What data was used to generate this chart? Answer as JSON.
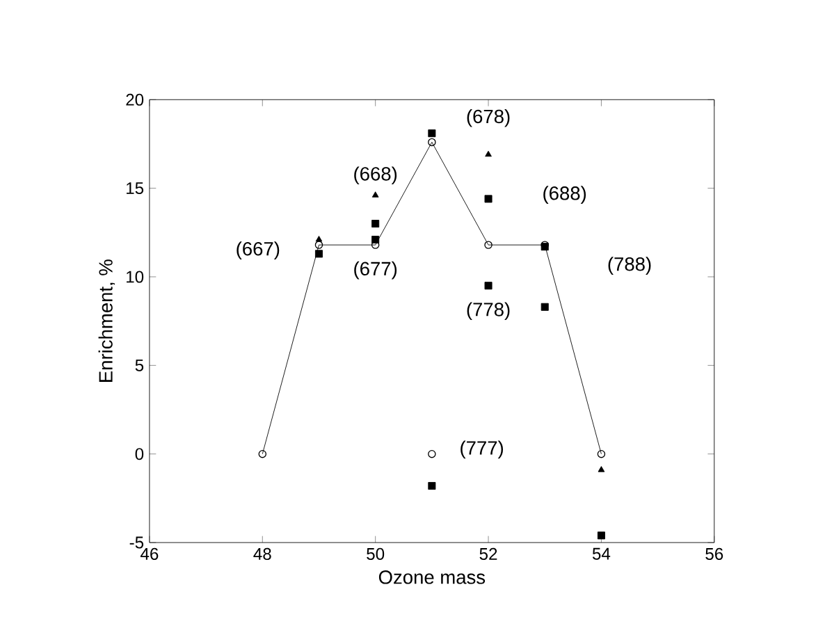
{
  "chart_data": {
    "type": "scatter",
    "xlabel": "Ozone mass",
    "ylabel": "Enrichment, %",
    "xlim": [
      46,
      56
    ],
    "ylim": [
      -5,
      20
    ],
    "xticks": [
      46,
      48,
      50,
      52,
      54,
      56
    ],
    "yticks": [
      -5,
      0,
      5,
      10,
      15,
      20
    ],
    "grid": false,
    "series": [
      {
        "type": "line",
        "color": "#000000",
        "marker": "circle",
        "x": [
          48,
          49,
          50,
          51,
          52,
          53,
          54
        ],
        "values": [
          0,
          11.8,
          11.8,
          17.6,
          11.8,
          11.8,
          0
        ]
      },
      {
        "color": "#000000",
        "marker": "circle",
        "x": [
          51
        ],
        "values": [
          0
        ]
      },
      {
        "type": "scatter",
        "color": "#000000",
        "marker": "square",
        "x": [
          49,
          50,
          50,
          51,
          51,
          52,
          52,
          53,
          53,
          54
        ],
        "values": [
          11.3,
          13.0,
          12.1,
          18.1,
          -1.8,
          14.4,
          9.5,
          11.7,
          8.3,
          -4.6
        ]
      },
      {
        "type": "scatter",
        "color": "#000000",
        "marker": "triangle",
        "x": [
          49,
          50,
          52,
          54
        ],
        "values": [
          12.1,
          14.6,
          16.9,
          -0.9
        ]
      }
    ],
    "annotations": [
      {
        "text": "(667)",
        "x": 49,
        "y": 11.8
      },
      {
        "text": "(668)",
        "x": 50,
        "y": 14.6
      },
      {
        "text": "(677)",
        "x": 50,
        "y": 11.8
      },
      {
        "text": "(678)",
        "x": 52,
        "y": 16.9
      },
      "(688)",
      {
        "text": "(778)",
        "x": 52,
        "y": 9.5
      },
      {
        "text": "(777)",
        "x": 51,
        "y": 0
      },
      "(788)"
    ]
  }
}
